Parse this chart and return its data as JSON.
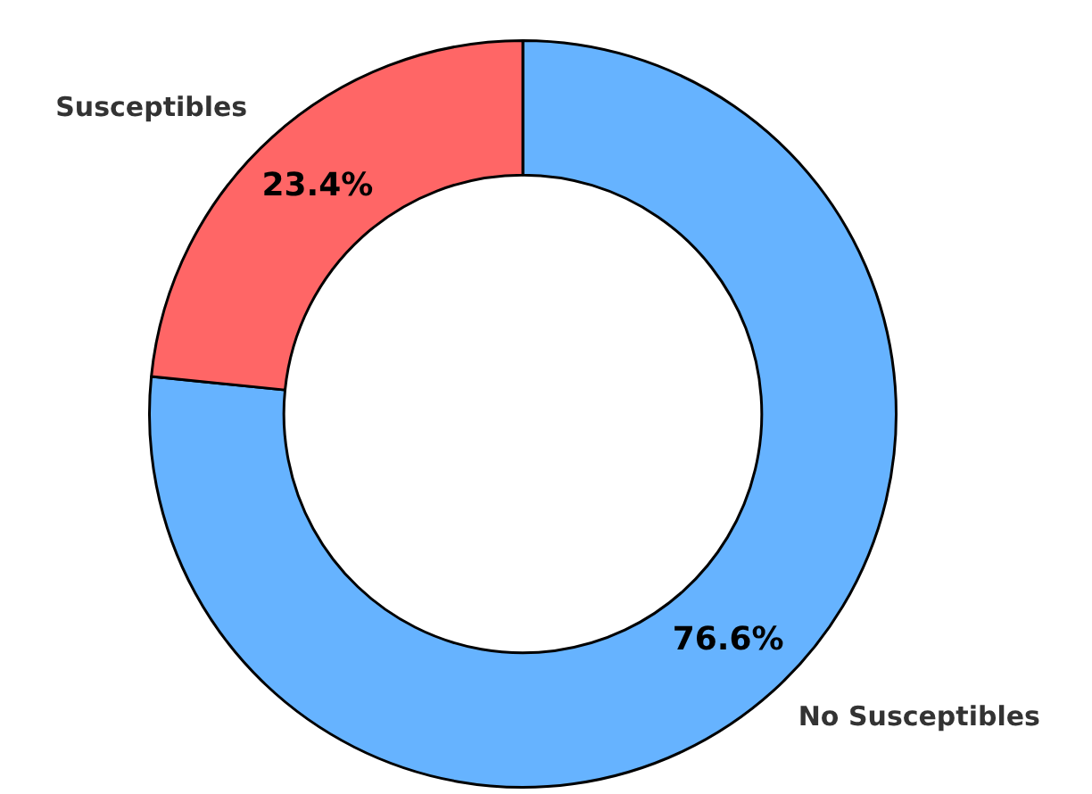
{
  "chart_data": {
    "type": "donut",
    "categories": [
      "No Susceptibles",
      "Susceptibles"
    ],
    "values": [
      76.6,
      23.4
    ],
    "colors": [
      "#66b3ff",
      "#ff6666"
    ],
    "value_labels": [
      "76.6%",
      "23.4%"
    ],
    "legend": false
  }
}
